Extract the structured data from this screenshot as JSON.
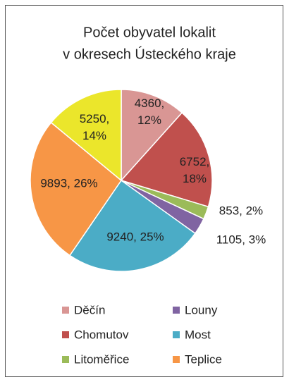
{
  "chart_data": {
    "type": "pie",
    "title": [
      "Počet obyvatel lokalit",
      "v okresech Ústeckého kraje"
    ],
    "categories": [
      "Děčín",
      "Chomutov",
      "Litoměřice",
      "Louny",
      "Most",
      "Teplice",
      null
    ],
    "values": [
      4360,
      6752,
      853,
      1105,
      9240,
      9893,
      5250
    ],
    "value_labels": [
      "4360, 12%",
      "6752, 18%",
      "853, 2%",
      "1105, 3%",
      "9240, 25%",
      "9893, 26%",
      "5250, 14%"
    ],
    "colors": [
      "#d99694",
      "#c0504d",
      "#9bbb59",
      "#8064a2",
      "#4bacc6",
      "#f79646",
      "#ebe62b"
    ],
    "legend": "bottom"
  }
}
